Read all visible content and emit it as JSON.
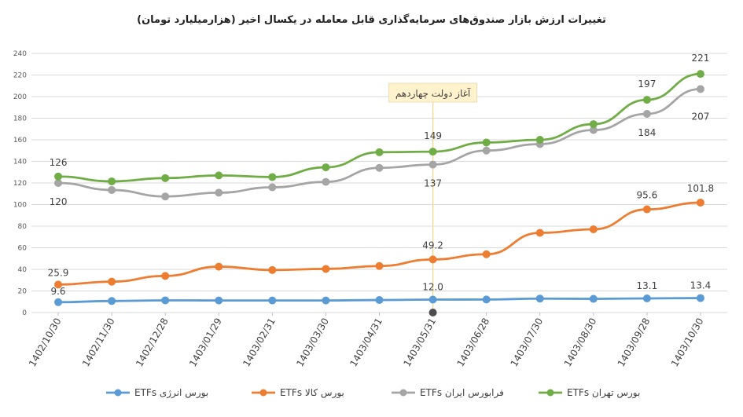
{
  "chart_data": {
    "type": "line",
    "title": "تغییرات ارزش بازار صندوق‌های سرمایه‌گذاری قابل معامله در یکسال اخیر (هزارمیلیارد تومان)",
    "categories": [
      "1402/10/30",
      "1402/11/30",
      "1402/12/28",
      "1403/01/29",
      "1403/02/31",
      "1403/03/30",
      "1403/04/31",
      "1403/05/31",
      "1403/06/28",
      "1403/07/30",
      "1403/08/30",
      "1403/09/28",
      "1403/10/30"
    ],
    "ylim": [
      0,
      240
    ],
    "yticks": [
      0,
      20,
      40,
      60,
      80,
      100,
      120,
      140,
      160,
      180,
      200,
      220,
      240
    ],
    "grid": true,
    "legend_position": "bottom",
    "series": [
      {
        "name": "ETFs بورس انرژی",
        "color": "#5b9bd5",
        "values": [
          9.6,
          10.7,
          11.3,
          11.2,
          11.2,
          11.2,
          11.6,
          12.0,
          12.1,
          12.9,
          12.7,
          13.1,
          13.4
        ],
        "labels": [
          {
            "i": 0,
            "text": "9.6"
          },
          {
            "i": 7,
            "text": "12.0"
          },
          {
            "i": 11,
            "text": "13.1"
          },
          {
            "i": 12,
            "text": "13.4"
          }
        ]
      },
      {
        "name": "ETFs بورس کالا",
        "color": "#ed7d31",
        "values": [
          25.9,
          28.6,
          33.9,
          42.5,
          39.4,
          40.4,
          43.1,
          49.2,
          54.0,
          73.8,
          77.1,
          95.6,
          101.8
        ],
        "labels": [
          {
            "i": 0,
            "text": "25.9"
          },
          {
            "i": 7,
            "text": "49.2"
          },
          {
            "i": 11,
            "text": "95.6"
          },
          {
            "i": 12,
            "text": "101.8"
          }
        ]
      },
      {
        "name": "ETFs فرابورس ایران",
        "color": "#a5a5a5",
        "values": [
          120,
          113.5,
          107.5,
          111,
          116,
          121,
          134,
          137,
          150,
          156,
          169,
          184,
          207
        ],
        "labels": [
          {
            "i": 0,
            "text": "120"
          },
          {
            "i": 7,
            "text": "137"
          },
          {
            "i": 11,
            "text": "184"
          },
          {
            "i": 12,
            "text": "207"
          }
        ]
      },
      {
        "name": "ETFs بورس تهران",
        "color": "#70ad47",
        "values": [
          126,
          121.5,
          124.5,
          127,
          125.5,
          134.5,
          148.5,
          149,
          157.5,
          160,
          174.5,
          197,
          221
        ],
        "labels": [
          {
            "i": 0,
            "text": "126"
          },
          {
            "i": 7,
            "text": "149"
          },
          {
            "i": 11,
            "text": "197"
          },
          {
            "i": 12,
            "text": "221"
          }
        ]
      }
    ],
    "annotation": {
      "text": "آغاز دولت چهاردهم",
      "category_index": 7
    }
  }
}
